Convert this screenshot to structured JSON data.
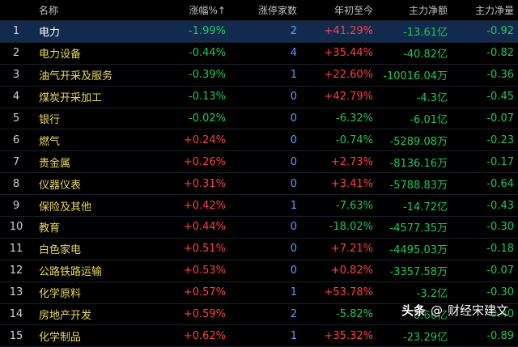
{
  "headers": {
    "idx": "",
    "name": "名称",
    "change": "涨幅%↑",
    "limit_count": "涨停家数",
    "ytd": "年初至今",
    "main_flow": "主力净额",
    "main_net": "主力净量"
  },
  "rows": [
    {
      "idx": "1",
      "name": "电力",
      "change": "-1.99%",
      "limit": "2",
      "ytd": "+41.29%",
      "flow": "-13.61亿",
      "net": "-0.92"
    },
    {
      "idx": "2",
      "name": "电力设备",
      "change": "-0.44%",
      "limit": "4",
      "ytd": "+35.44%",
      "flow": "-40.82亿",
      "net": "-0.82"
    },
    {
      "idx": "3",
      "name": "油气开采及服务",
      "change": "-0.39%",
      "limit": "1",
      "ytd": "+22.60%",
      "flow": "-10016.04万",
      "net": "-0.36"
    },
    {
      "idx": "4",
      "name": "煤炭开采加工",
      "change": "-0.13%",
      "limit": "0",
      "ytd": "+42.79%",
      "flow": "-4.3亿",
      "net": "-0.45"
    },
    {
      "idx": "5",
      "name": "银行",
      "change": "-0.02%",
      "limit": "0",
      "ytd": "-6.32%",
      "flow": "-6.01亿",
      "net": "-0.07"
    },
    {
      "idx": "6",
      "name": "燃气",
      "change": "+0.24%",
      "limit": "0",
      "ytd": "-0.74%",
      "flow": "-5289.08万",
      "net": "-0.23"
    },
    {
      "idx": "7",
      "name": "贵金属",
      "change": "+0.26%",
      "limit": "0",
      "ytd": "+2.73%",
      "flow": "-8136.16万",
      "net": "-0.17"
    },
    {
      "idx": "8",
      "name": "仪器仪表",
      "change": "+0.31%",
      "limit": "0",
      "ytd": "+3.41%",
      "flow": "-5788.83万",
      "net": "-0.64"
    },
    {
      "idx": "9",
      "name": "保险及其他",
      "change": "+0.42%",
      "limit": "1",
      "ytd": "-7.63%",
      "flow": "-14.72亿",
      "net": "-0.43"
    },
    {
      "idx": "10",
      "name": "教育",
      "change": "+0.44%",
      "limit": "0",
      "ytd": "-18.02%",
      "flow": "-4577.35万",
      "net": "-0.30"
    },
    {
      "idx": "11",
      "name": "白色家电",
      "change": "+0.51%",
      "limit": "0",
      "ytd": "+7.21%",
      "flow": "-4495.03万",
      "net": "-0.18"
    },
    {
      "idx": "12",
      "name": "公路铁路运输",
      "change": "+0.53%",
      "limit": "0",
      "ytd": "+0.82%",
      "flow": "-3357.58万",
      "net": "-0.07"
    },
    {
      "idx": "13",
      "name": "化学原料",
      "change": "+0.57%",
      "limit": "1",
      "ytd": "+53.78%",
      "flow": "-3.2亿",
      "net": "-0.30"
    },
    {
      "idx": "14",
      "name": "房地产开发",
      "change": "+0.59%",
      "limit": "2",
      "ytd": "-5.82%",
      "flow": "-8.66亿",
      "net": "-0.40"
    },
    {
      "idx": "15",
      "name": "化学制品",
      "change": "+0.62%",
      "limit": "1",
      "ytd": "+35.32%",
      "flow": "-23.29亿",
      "net": "-0.89"
    }
  ],
  "watermark": {
    "logo": "头条",
    "separator": "@",
    "author": "财经宋建文"
  },
  "colors": {
    "up": "#ff4040",
    "down": "#1ec85a",
    "name": "#e8d95a",
    "limit": "#5aa0ff",
    "selected_bg": "#132a4f"
  }
}
